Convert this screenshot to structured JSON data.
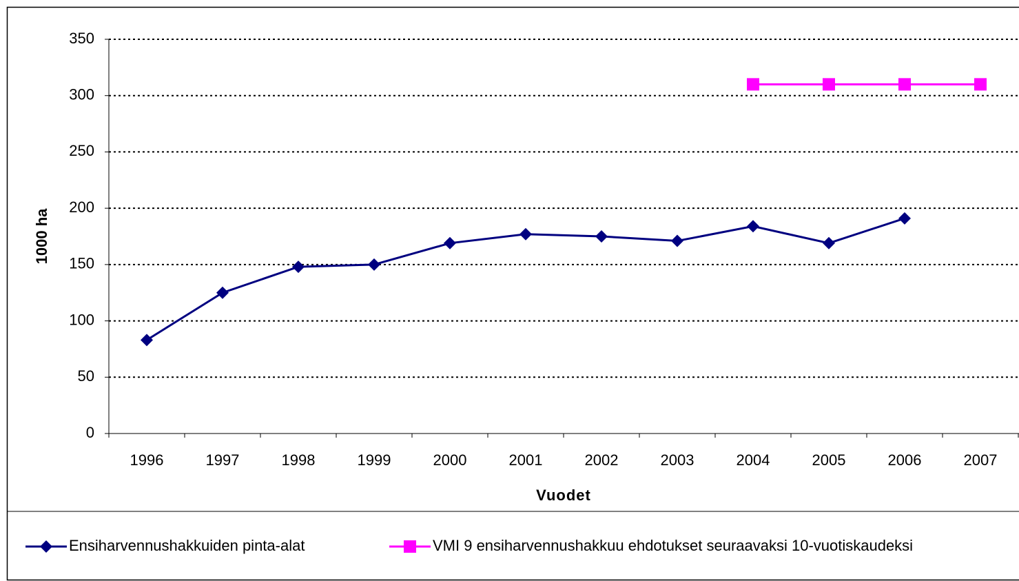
{
  "chart_data": {
    "type": "line",
    "x_label": "Vuodet",
    "y_label": "1000 ha",
    "categories": [
      "1996",
      "1997",
      "1998",
      "1999",
      "2000",
      "2001",
      "2002",
      "2003",
      "2004",
      "2005",
      "2006",
      "2007"
    ],
    "series": [
      {
        "name": "Ensiharvennushakkuiden pinta-alat",
        "color": "#000080",
        "marker": "diamond",
        "values": [
          83,
          125,
          148,
          150,
          169,
          177,
          175,
          171,
          184,
          169,
          191,
          null
        ]
      },
      {
        "name": "VMI 9 ensiharvennushakkuu ehdotukset seuraavaksi 10-vuotiskaudeksi",
        "color": "#ff00ff",
        "marker": "square",
        "values": [
          null,
          null,
          null,
          null,
          null,
          null,
          null,
          null,
          310,
          310,
          310,
          310
        ]
      }
    ],
    "ylim": [
      0,
      350
    ],
    "yticks": [
      0,
      50,
      100,
      150,
      200,
      250,
      300,
      350
    ],
    "grid": true,
    "legend": "bottom"
  }
}
